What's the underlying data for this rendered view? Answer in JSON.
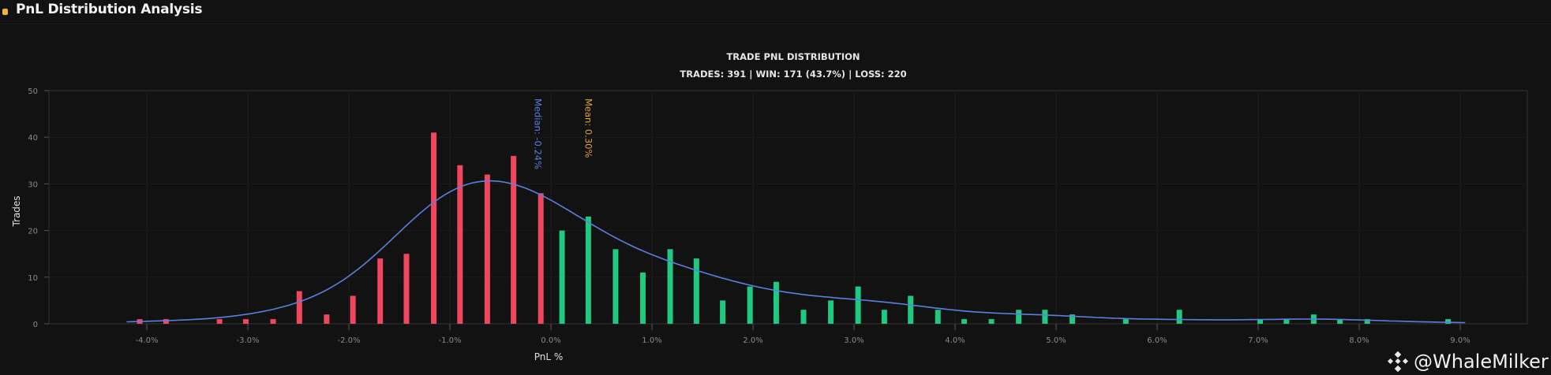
{
  "header": {
    "title": "PnL Distribution Analysis"
  },
  "watermark": {
    "text": "@WhaleMilker",
    "icon": "binance-logo-icon"
  },
  "chart_data": {
    "type": "bar",
    "title": "TRADE PNL DISTRIBUTION",
    "subtitle": "TRADES: 391 | WIN: 171 (43.7%) | LOSS: 220",
    "xlabel": "PnL %",
    "ylabel": "Trades",
    "xlim": [
      -4.6,
      9.7
    ],
    "ylim": [
      0,
      50
    ],
    "grid": true,
    "x_ticks": [
      -4,
      -3,
      -2,
      -1,
      0,
      1,
      2,
      3,
      4,
      5,
      6,
      7,
      8,
      9
    ],
    "x_tick_labels": [
      "-4.0%",
      "-3.0%",
      "-2.0%",
      "-1.0%",
      "0.0%",
      "1.0%",
      "2.0%",
      "3.0%",
      "4.0%",
      "5.0%",
      "6.0%",
      "7.0%",
      "8.0%",
      "9.0%"
    ],
    "y_ticks": [
      0,
      10,
      20,
      30,
      40,
      50
    ],
    "y_tick_labels": [
      "0",
      "10",
      "20",
      "30",
      "40",
      "50"
    ],
    "series": [
      {
        "name": "Loss",
        "color": "#f0475f",
        "x": [
          -4.07,
          -3.81,
          -3.28,
          -3.02,
          -2.75,
          -2.49,
          -2.22,
          -1.96,
          -1.69,
          -1.43,
          -1.16,
          -0.9,
          -0.63,
          -0.37,
          -0.1
        ],
        "values": [
          1,
          1,
          1,
          1,
          1,
          7,
          2,
          6,
          14,
          15,
          41,
          34,
          32,
          36,
          28
        ]
      },
      {
        "name": "Win",
        "color": "#1fc97f",
        "x": [
          0.11,
          0.37,
          0.64,
          0.91,
          1.18,
          1.44,
          1.7,
          1.97,
          2.23,
          2.5,
          2.77,
          3.04,
          3.3,
          3.56,
          3.83,
          4.09,
          4.36,
          4.63,
          4.89,
          5.16,
          5.69,
          6.22,
          7.02,
          7.28,
          7.55,
          7.81,
          8.08,
          8.88
        ],
        "values": [
          20,
          23,
          16,
          11,
          16,
          14,
          5,
          8,
          9,
          3,
          5,
          8,
          3,
          6,
          3,
          1,
          1,
          3,
          3,
          2,
          1,
          3,
          1,
          1,
          2,
          1,
          1,
          1
        ]
      }
    ],
    "density_curve": {
      "color": "#5b7fe0",
      "x_range": [
        -4.2,
        9.05
      ],
      "bandwidth": 0.55,
      "bin_width": 0.265
    },
    "annotations": [
      {
        "label": "Median: -0.24%",
        "x": -0.24,
        "color": "#5b7fe0"
      },
      {
        "label": "Mean: 0.30%",
        "x": 0.3,
        "color": "#e0a040"
      }
    ]
  }
}
